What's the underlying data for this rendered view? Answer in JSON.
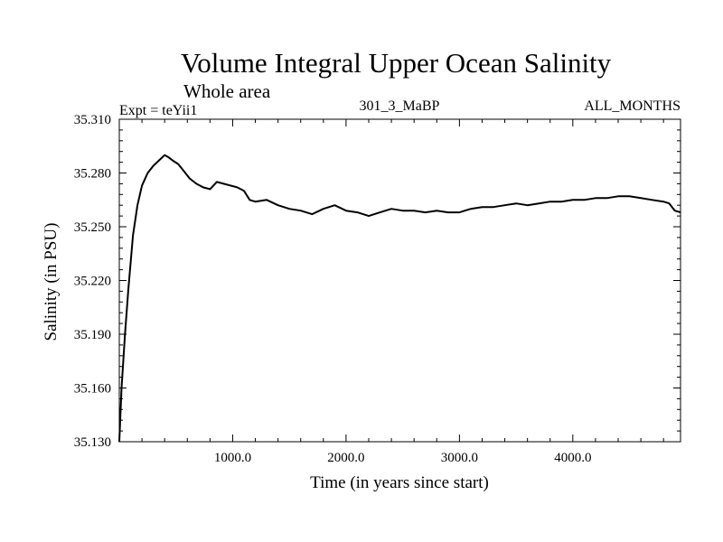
{
  "chart_data": {
    "type": "line",
    "title": "Volume Integral Upper Ocean Salinity",
    "subtitle": "Whole area",
    "annotations": {
      "left": "Expt = teYii1",
      "center": "301_3_MaBP",
      "right": "ALL_MONTHS"
    },
    "xlabel": "Time (in years since start)",
    "ylabel": "Salinity (in PSU)",
    "xlim": [
      0,
      4950
    ],
    "ylim": [
      35.13,
      35.31
    ],
    "xticks": [
      1000,
      2000,
      3000,
      4000
    ],
    "xtick_labels": [
      "1000.0",
      "2000.0",
      "3000.0",
      "4000.0"
    ],
    "yticks": [
      35.13,
      35.16,
      35.19,
      35.22,
      35.25,
      35.28,
      35.31
    ],
    "ytick_labels": [
      "35.130",
      "35.160",
      "35.190",
      "35.220",
      "35.250",
      "35.280",
      "35.310"
    ],
    "grid": false,
    "series": [
      {
        "name": "Salinity",
        "color": "#000000",
        "x": [
          0,
          20,
          50,
          80,
          120,
          160,
          200,
          250,
          300,
          350,
          400,
          430,
          470,
          520,
          570,
          620,
          680,
          740,
          800,
          860,
          920,
          980,
          1040,
          1100,
          1150,
          1200,
          1300,
          1400,
          1500,
          1600,
          1700,
          1800,
          1900,
          2000,
          2100,
          2200,
          2300,
          2400,
          2500,
          2600,
          2700,
          2800,
          2900,
          3000,
          3100,
          3200,
          3300,
          3400,
          3500,
          3600,
          3700,
          3800,
          3900,
          4000,
          4100,
          4200,
          4300,
          4400,
          4500,
          4600,
          4700,
          4800,
          4850,
          4900,
          4950
        ],
        "y": [
          35.13,
          35.16,
          35.19,
          35.215,
          35.245,
          35.262,
          35.273,
          35.28,
          35.284,
          35.287,
          35.29,
          35.289,
          35.287,
          35.285,
          35.281,
          35.277,
          35.274,
          35.272,
          35.271,
          35.275,
          35.274,
          35.273,
          35.272,
          35.27,
          35.265,
          35.264,
          35.265,
          35.262,
          35.26,
          35.259,
          35.257,
          35.26,
          35.262,
          35.259,
          35.258,
          35.256,
          35.258,
          35.26,
          35.259,
          35.259,
          35.258,
          35.259,
          35.258,
          35.258,
          35.26,
          35.261,
          35.261,
          35.262,
          35.263,
          35.262,
          35.263,
          35.264,
          35.264,
          35.265,
          35.265,
          35.266,
          35.266,
          35.267,
          35.267,
          35.266,
          35.265,
          35.264,
          35.263,
          35.259,
          35.258
        ]
      }
    ]
  }
}
